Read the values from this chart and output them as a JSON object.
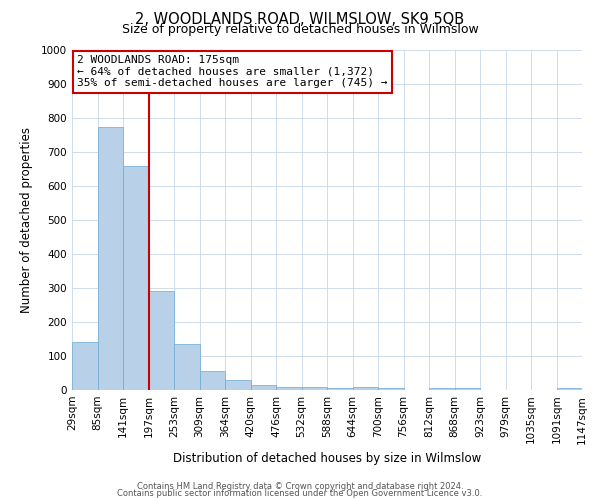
{
  "title": "2, WOODLANDS ROAD, WILMSLOW, SK9 5QB",
  "subtitle": "Size of property relative to detached houses in Wilmslow",
  "xlabel": "Distribution of detached houses by size in Wilmslow",
  "ylabel": "Number of detached properties",
  "bar_labels": [
    "29sqm",
    "85sqm",
    "141sqm",
    "197sqm",
    "253sqm",
    "309sqm",
    "364sqm",
    "420sqm",
    "476sqm",
    "532sqm",
    "588sqm",
    "644sqm",
    "700sqm",
    "756sqm",
    "812sqm",
    "868sqm",
    "923sqm",
    "979sqm",
    "1035sqm",
    "1091sqm",
    "1147sqm"
  ],
  "bar_color": "#b8d0e8",
  "bar_edge_color": "#6aaad4",
  "vline_color": "#cc0000",
  "annotation_title": "2 WOODLANDS ROAD: 175sqm",
  "annotation_line1": "← 64% of detached houses are smaller (1,372)",
  "annotation_line2": "35% of semi-detached houses are larger (745) →",
  "annotation_box_color": "#ffffff",
  "annotation_box_edge": "#cc0000",
  "ylim": [
    0,
    1000
  ],
  "yticks": [
    0,
    100,
    200,
    300,
    400,
    500,
    600,
    700,
    800,
    900,
    1000
  ],
  "footer1": "Contains HM Land Registry data © Crown copyright and database right 2024.",
  "footer2": "Contains public sector information licensed under the Open Government Licence v3.0.",
  "background_color": "#ffffff",
  "grid_color": "#c8d8e8",
  "all_bar_values": [
    140,
    775,
    660,
    290,
    135,
    55,
    30,
    15,
    10,
    10,
    5,
    10,
    5,
    0,
    5,
    5,
    0,
    0,
    0,
    5
  ],
  "num_bars": 20,
  "vline_pos": 2.5
}
